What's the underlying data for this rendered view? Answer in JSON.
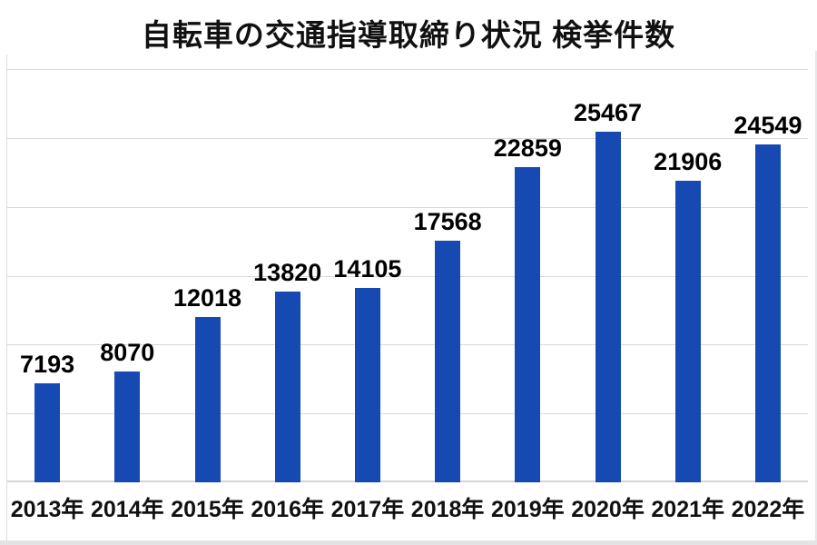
{
  "title": "自転車の交通指導取締り状況 検挙件数",
  "colors": {
    "bar": "#1749B2",
    "gridline": "#D9D9D9",
    "baseline": "#D4D4D4",
    "label_text": "#000000",
    "frame_edge": "#E4E4E6"
  },
  "chart_data": {
    "type": "bar",
    "title": "自転車の交通指導取締り状況 検挙件数",
    "categories": [
      "2013年",
      "2014年",
      "2015年",
      "2016年",
      "2017年",
      "2018年",
      "2019年",
      "2020年",
      "2021年",
      "2022年"
    ],
    "values": [
      7193,
      8070,
      12018,
      13820,
      14105,
      17568,
      22859,
      25467,
      21906,
      24549
    ],
    "xlabel": "",
    "ylabel": "",
    "ylim": [
      0,
      30000
    ],
    "gridline_interval": 5000,
    "grid": true,
    "y_tick_labels_visible": false,
    "legend_position": "none",
    "data_labels": true
  }
}
